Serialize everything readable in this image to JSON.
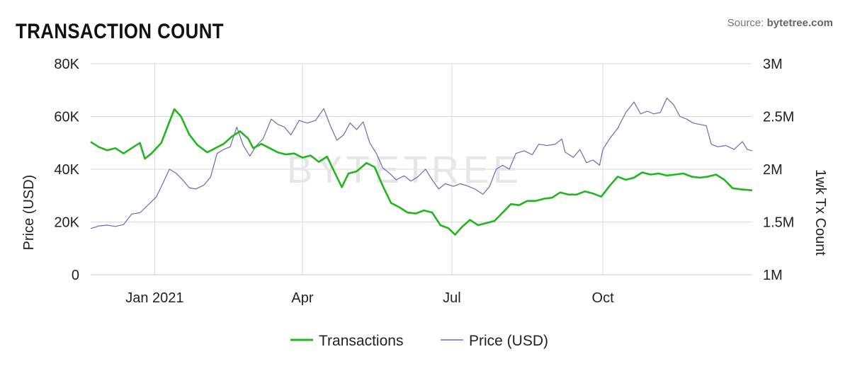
{
  "header": {
    "title": "TRANSACTION COUNT",
    "source_prefix": "Source: ",
    "source_name": "bytetree.com"
  },
  "watermark": "BYTETREE",
  "colors": {
    "transactions": "#22b61e",
    "price": "#6b6bb0",
    "grid": "#d9d9d9"
  },
  "chart_data": {
    "type": "line",
    "title": "TRANSACTION COUNT",
    "ylabel_left": "Price (USD)",
    "ylabel_right": "1wk Tx Count",
    "y_left_ticks": [
      "0",
      "20K",
      "40K",
      "60K",
      "80K"
    ],
    "y_left_lim": [
      0,
      80000
    ],
    "y_right_ticks": [
      "1M",
      "1.5M",
      "2M",
      "2.5M",
      "3M"
    ],
    "y_right_lim": [
      1000000,
      3000000
    ],
    "x_ticks": [
      {
        "label": "Jan 2021",
        "date": "2021-01-01"
      },
      {
        "label": "Apr",
        "date": "2021-04-01"
      },
      {
        "label": "Jul",
        "date": "2021-07-01"
      },
      {
        "label": "Oct",
        "date": "2021-10-01"
      }
    ],
    "x_range": [
      "2020-11-23",
      "2021-12-31"
    ],
    "grid": true,
    "legend_position": "bottom-center",
    "series": [
      {
        "name": "Transactions",
        "axis": "right",
        "points": [
          [
            "2020-11-23",
            2260000
          ],
          [
            "2020-11-28",
            2210000
          ],
          [
            "2020-12-03",
            2180000
          ],
          [
            "2020-12-08",
            2200000
          ],
          [
            "2020-12-13",
            2150000
          ],
          [
            "2020-12-18",
            2200000
          ],
          [
            "2020-12-23",
            2250000
          ],
          [
            "2020-12-26",
            2100000
          ],
          [
            "2020-12-30",
            2150000
          ],
          [
            "2021-01-05",
            2250000
          ],
          [
            "2021-01-10",
            2450000
          ],
          [
            "2021-01-13",
            2570000
          ],
          [
            "2021-01-17",
            2500000
          ],
          [
            "2021-01-22",
            2330000
          ],
          [
            "2021-01-27",
            2230000
          ],
          [
            "2021-02-02",
            2160000
          ],
          [
            "2021-02-07",
            2200000
          ],
          [
            "2021-02-12",
            2240000
          ],
          [
            "2021-02-17",
            2310000
          ],
          [
            "2021-02-22",
            2360000
          ],
          [
            "2021-02-27",
            2290000
          ],
          [
            "2021-03-02",
            2200000
          ],
          [
            "2021-03-07",
            2240000
          ],
          [
            "2021-03-12",
            2200000
          ],
          [
            "2021-03-17",
            2160000
          ],
          [
            "2021-03-22",
            2140000
          ],
          [
            "2021-03-27",
            2150000
          ],
          [
            "2021-04-01",
            2110000
          ],
          [
            "2021-04-06",
            2130000
          ],
          [
            "2021-04-11",
            2070000
          ],
          [
            "2021-04-16",
            2120000
          ],
          [
            "2021-04-20",
            1990000
          ],
          [
            "2021-04-25",
            1830000
          ],
          [
            "2021-04-29",
            1960000
          ],
          [
            "2021-05-04",
            1980000
          ],
          [
            "2021-05-10",
            2060000
          ],
          [
            "2021-05-15",
            2020000
          ],
          [
            "2021-05-20",
            1840000
          ],
          [
            "2021-05-25",
            1680000
          ],
          [
            "2021-05-30",
            1640000
          ],
          [
            "2021-06-04",
            1590000
          ],
          [
            "2021-06-09",
            1580000
          ],
          [
            "2021-06-14",
            1610000
          ],
          [
            "2021-06-19",
            1590000
          ],
          [
            "2021-06-24",
            1470000
          ],
          [
            "2021-06-29",
            1440000
          ],
          [
            "2021-07-03",
            1380000
          ],
          [
            "2021-07-07",
            1450000
          ],
          [
            "2021-07-12",
            1520000
          ],
          [
            "2021-07-17",
            1470000
          ],
          [
            "2021-07-22",
            1490000
          ],
          [
            "2021-07-27",
            1510000
          ],
          [
            "2021-08-01",
            1590000
          ],
          [
            "2021-08-06",
            1670000
          ],
          [
            "2021-08-11",
            1660000
          ],
          [
            "2021-08-16",
            1700000
          ],
          [
            "2021-08-21",
            1700000
          ],
          [
            "2021-08-26",
            1720000
          ],
          [
            "2021-08-31",
            1730000
          ],
          [
            "2021-09-05",
            1780000
          ],
          [
            "2021-09-10",
            1760000
          ],
          [
            "2021-09-15",
            1760000
          ],
          [
            "2021-09-20",
            1790000
          ],
          [
            "2021-09-25",
            1770000
          ],
          [
            "2021-09-30",
            1740000
          ],
          [
            "2021-10-05",
            1840000
          ],
          [
            "2021-10-10",
            1930000
          ],
          [
            "2021-10-15",
            1900000
          ],
          [
            "2021-10-20",
            1920000
          ],
          [
            "2021-10-25",
            1970000
          ],
          [
            "2021-10-30",
            1950000
          ],
          [
            "2021-11-04",
            1960000
          ],
          [
            "2021-11-09",
            1940000
          ],
          [
            "2021-11-14",
            1950000
          ],
          [
            "2021-11-19",
            1960000
          ],
          [
            "2021-11-24",
            1930000
          ],
          [
            "2021-11-29",
            1920000
          ],
          [
            "2021-12-04",
            1930000
          ],
          [
            "2021-12-09",
            1950000
          ],
          [
            "2021-12-14",
            1900000
          ],
          [
            "2021-12-19",
            1820000
          ],
          [
            "2021-12-24",
            1810000
          ],
          [
            "2021-12-31",
            1800000
          ]
        ]
      },
      {
        "name": "Price (USD)",
        "axis": "left",
        "points": [
          [
            "2020-11-23",
            17500
          ],
          [
            "2020-11-28",
            18500
          ],
          [
            "2020-12-03",
            18800
          ],
          [
            "2020-12-08",
            18300
          ],
          [
            "2020-12-13",
            19000
          ],
          [
            "2020-12-18",
            23000
          ],
          [
            "2020-12-23",
            23500
          ],
          [
            "2020-12-28",
            26500
          ],
          [
            "2021-01-02",
            29500
          ],
          [
            "2021-01-07",
            36000
          ],
          [
            "2021-01-10",
            40000
          ],
          [
            "2021-01-14",
            38500
          ],
          [
            "2021-01-18",
            36000
          ],
          [
            "2021-01-22",
            33000
          ],
          [
            "2021-01-26",
            32500
          ],
          [
            "2021-01-31",
            34000
          ],
          [
            "2021-02-04",
            37000
          ],
          [
            "2021-02-08",
            46000
          ],
          [
            "2021-02-12",
            47500
          ],
          [
            "2021-02-16",
            48500
          ],
          [
            "2021-02-20",
            56000
          ],
          [
            "2021-02-24",
            49000
          ],
          [
            "2021-02-28",
            45000
          ],
          [
            "2021-03-04",
            49000
          ],
          [
            "2021-03-08",
            51500
          ],
          [
            "2021-03-13",
            59000
          ],
          [
            "2021-03-17",
            57000
          ],
          [
            "2021-03-21",
            56000
          ],
          [
            "2021-03-25",
            53000
          ],
          [
            "2021-03-30",
            58500
          ],
          [
            "2021-04-04",
            57500
          ],
          [
            "2021-04-09",
            58500
          ],
          [
            "2021-04-14",
            63000
          ],
          [
            "2021-04-18",
            56500
          ],
          [
            "2021-04-22",
            51000
          ],
          [
            "2021-04-26",
            53000
          ],
          [
            "2021-04-30",
            57500
          ],
          [
            "2021-05-04",
            55000
          ],
          [
            "2021-05-08",
            58000
          ],
          [
            "2021-05-12",
            50000
          ],
          [
            "2021-05-16",
            46000
          ],
          [
            "2021-05-20",
            40500
          ],
          [
            "2021-05-24",
            38500
          ],
          [
            "2021-05-28",
            36000
          ],
          [
            "2021-06-02",
            37500
          ],
          [
            "2021-06-06",
            35500
          ],
          [
            "2021-06-10",
            37000
          ],
          [
            "2021-06-15",
            40000
          ],
          [
            "2021-06-19",
            36000
          ],
          [
            "2021-06-23",
            32500
          ],
          [
            "2021-06-27",
            34500
          ],
          [
            "2021-07-02",
            33500
          ],
          [
            "2021-07-06",
            34500
          ],
          [
            "2021-07-10",
            33800
          ],
          [
            "2021-07-15",
            32500
          ],
          [
            "2021-07-20",
            30500
          ],
          [
            "2021-07-24",
            33500
          ],
          [
            "2021-07-28",
            40000
          ],
          [
            "2021-08-01",
            41500
          ],
          [
            "2021-08-05",
            40000
          ],
          [
            "2021-08-09",
            46000
          ],
          [
            "2021-08-14",
            47000
          ],
          [
            "2021-08-19",
            45500
          ],
          [
            "2021-08-23",
            49500
          ],
          [
            "2021-08-28",
            49000
          ],
          [
            "2021-09-02",
            49500
          ],
          [
            "2021-09-06",
            51500
          ],
          [
            "2021-09-08",
            46500
          ],
          [
            "2021-09-13",
            44500
          ],
          [
            "2021-09-17",
            47500
          ],
          [
            "2021-09-21",
            42500
          ],
          [
            "2021-09-25",
            43500
          ],
          [
            "2021-09-29",
            41500
          ],
          [
            "2021-10-01",
            47500
          ],
          [
            "2021-10-05",
            51500
          ],
          [
            "2021-10-10",
            55500
          ],
          [
            "2021-10-15",
            61500
          ],
          [
            "2021-10-20",
            65500
          ],
          [
            "2021-10-24",
            61000
          ],
          [
            "2021-10-28",
            62000
          ],
          [
            "2021-11-01",
            61000
          ],
          [
            "2021-11-05",
            61500
          ],
          [
            "2021-11-09",
            67000
          ],
          [
            "2021-11-13",
            64500
          ],
          [
            "2021-11-17",
            60000
          ],
          [
            "2021-11-21",
            59000
          ],
          [
            "2021-11-25",
            57500
          ],
          [
            "2021-11-29",
            57000
          ],
          [
            "2021-12-03",
            56500
          ],
          [
            "2021-12-06",
            49500
          ],
          [
            "2021-12-10",
            48500
          ],
          [
            "2021-12-15",
            49000
          ],
          [
            "2021-12-20",
            47500
          ],
          [
            "2021-12-25",
            50500
          ],
          [
            "2021-12-28",
            47500
          ],
          [
            "2021-12-31",
            47000
          ]
        ]
      }
    ]
  }
}
